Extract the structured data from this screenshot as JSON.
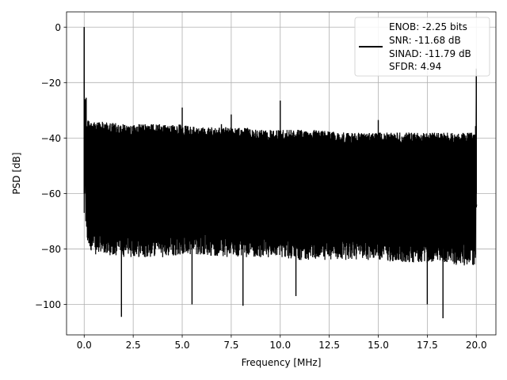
{
  "chart_data": {
    "type": "line",
    "title": "",
    "xlabel": "Frequency [MHz]",
    "ylabel": "PSD [dB]",
    "xlim": [
      -0.9,
      21.0
    ],
    "ylim": [
      -111,
      5.5
    ],
    "xticks": [
      0.0,
      2.5,
      5.0,
      7.5,
      10.0,
      12.5,
      15.0,
      17.5,
      20.0
    ],
    "xtick_labels": [
      "0.0",
      "2.5",
      "5.0",
      "7.5",
      "10.0",
      "12.5",
      "15.0",
      "17.5",
      "20.0"
    ],
    "yticks": [
      0,
      -20,
      -40,
      -60,
      -80,
      -100
    ],
    "ytick_labels": [
      "0",
      "−20",
      "−40",
      "−60",
      "−80",
      "−100"
    ],
    "grid": true,
    "legend_position": "top-right",
    "line_color": "#000000",
    "legend": [
      "ENOB: -2.25 bits",
      "SNR: -11.68 dB",
      "SINAD: -11.79 dB",
      "SFDR: 4.94"
    ],
    "series": [
      {
        "x": [
          0,
          0.05,
          0.1,
          0.5,
          1.0,
          2.0,
          3.0,
          4.0,
          5.0,
          6.0,
          7.0,
          8.0,
          9.0,
          10.0,
          11.0,
          12.0,
          13.0,
          14.0,
          15.0,
          16.0,
          17.0,
          18.0,
          19.0,
          19.95,
          20.0
        ],
        "upper_envelope": [
          0,
          -26,
          -33,
          -34,
          -34,
          -35,
          -35,
          -35,
          -35,
          -36,
          -36,
          -36,
          -37,
          -37,
          -37,
          -37,
          -38,
          -38,
          -38,
          -38,
          -38,
          -38,
          -38,
          -38,
          -15
        ],
        "lower_envelope": [
          -67,
          -70,
          -74,
          -78,
          -78,
          -79,
          -79,
          -79,
          -78,
          -78,
          -79,
          -79,
          -79,
          -79,
          -80,
          -80,
          -80,
          -80,
          -80,
          -81,
          -81,
          -81,
          -82,
          -82,
          -65
        ],
        "spurs": [
          {
            "x": 0.0,
            "y": 0
          },
          {
            "x": 0.1,
            "y": -25.5
          },
          {
            "x": 5.0,
            "y": -29
          },
          {
            "x": 7.0,
            "y": -35
          },
          {
            "x": 7.5,
            "y": -31.5
          },
          {
            "x": 10.0,
            "y": -26.5
          },
          {
            "x": 15.0,
            "y": -33.5
          },
          {
            "x": 20.0,
            "y": -15
          }
        ],
        "dips": [
          {
            "x": 1.9,
            "y": -104.5
          },
          {
            "x": 5.5,
            "y": -100
          },
          {
            "x": 8.1,
            "y": -100.5
          },
          {
            "x": 10.8,
            "y": -97
          },
          {
            "x": 17.5,
            "y": -100
          },
          {
            "x": 18.3,
            "y": -105
          }
        ]
      }
    ]
  }
}
